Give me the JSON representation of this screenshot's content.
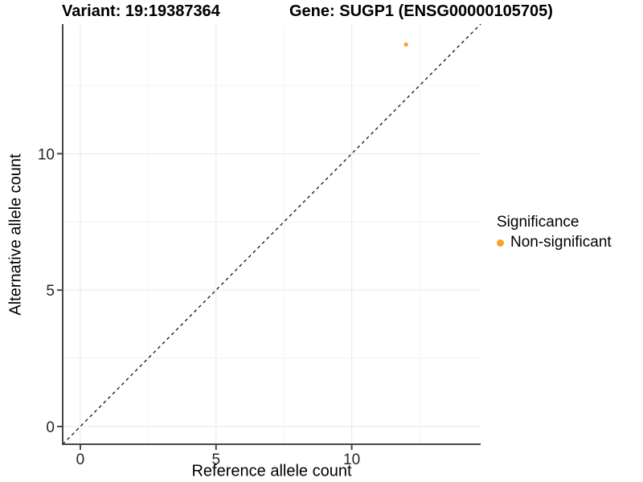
{
  "header": {
    "variant_title": "Variant: 19:19387364",
    "gene_title": "Gene: SUGP1 (ENSG00000105705)"
  },
  "chart_data": {
    "type": "scatter",
    "title": "Variant: 19:19387364    Gene: SUGP1 (ENSG00000105705)",
    "xlabel": "Reference allele count",
    "ylabel": "Alternative allele count",
    "xlim": [
      -0.65,
      14.75
    ],
    "ylim": [
      -0.65,
      14.75
    ],
    "x_ticks": [
      0,
      5,
      10
    ],
    "y_ticks": [
      0,
      5,
      10
    ],
    "x_minor_gridlines": [
      2.5,
      7.5,
      12.5
    ],
    "y_minor_gridlines": [
      2.5,
      7.5,
      12.5
    ],
    "grid": "on",
    "reference_line": "y = x, black dashed",
    "series": [
      {
        "name": "Non-significant",
        "color": "#F9A125",
        "points": [
          {
            "x": 12,
            "y": 14
          }
        ]
      }
    ],
    "legend": {
      "title": "Significance",
      "position": "right",
      "entries": [
        {
          "label": "Non-significant",
          "color": "#F9A125"
        }
      ]
    },
    "colors": {
      "point_orange": "#F9A125",
      "axis_line": "#474747",
      "tick_label": "#262626",
      "major_grid": "#e7e7e7",
      "minor_grid": "#f2f2f2",
      "reference_line": "#111111"
    }
  }
}
